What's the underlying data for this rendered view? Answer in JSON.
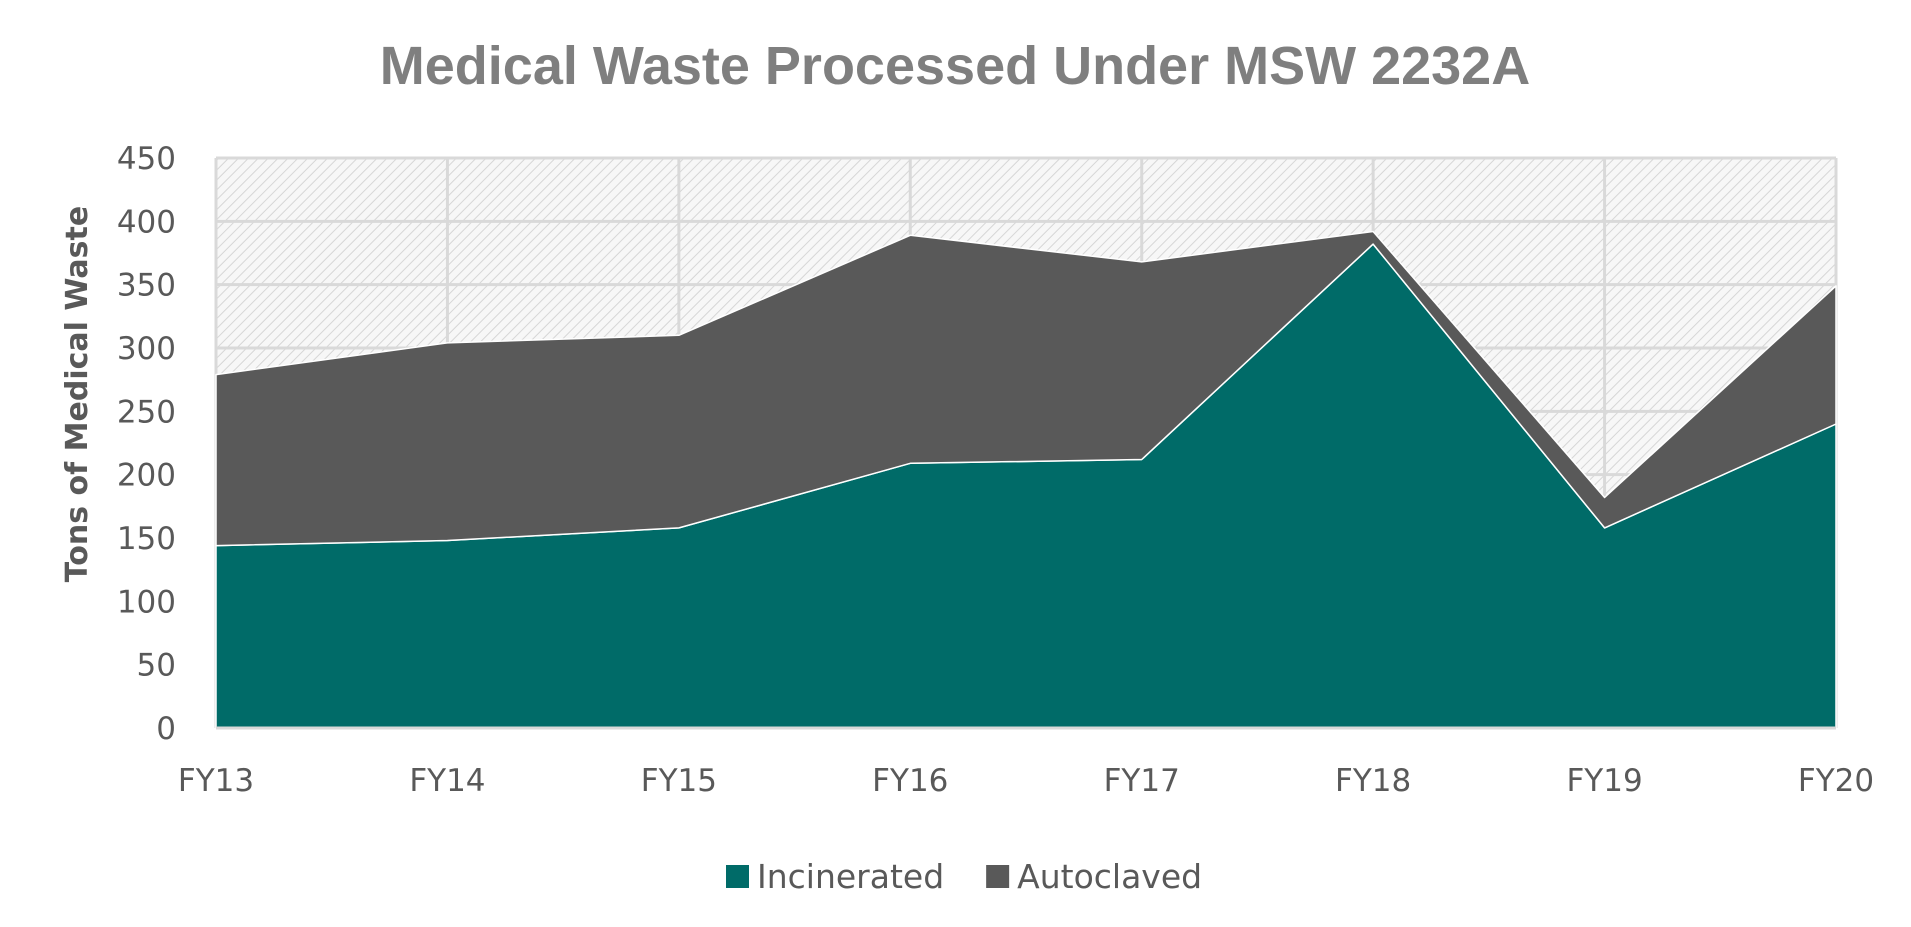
{
  "chart_data": {
    "type": "area",
    "stacked": true,
    "title": "Medical Waste Processed Under MSW 2232A",
    "ylabel": "Tons of Medical Waste",
    "xlabel": "",
    "categories": [
      "FY13",
      "FY14",
      "FY15",
      "FY16",
      "FY17",
      "FY18",
      "FY19",
      "FY20"
    ],
    "series": [
      {
        "name": "Incinerated",
        "color": "#006b68",
        "values": [
          144,
          148,
          158,
          209,
          212,
          382,
          158,
          240
        ]
      },
      {
        "name": "Autoclaved",
        "color": "#595959",
        "values": [
          135,
          156,
          152,
          180,
          156,
          10,
          24,
          109
        ]
      }
    ],
    "ylim": [
      0,
      450
    ],
    "yticks": [
      0,
      50,
      100,
      150,
      200,
      250,
      300,
      350,
      400,
      450
    ],
    "yticklabels": [
      "0",
      "50",
      "100",
      "150",
      "200",
      "250",
      "300",
      "350",
      "400",
      "450"
    ],
    "grid": true,
    "plot_background": "hatched light gray",
    "legend": "bottom"
  }
}
